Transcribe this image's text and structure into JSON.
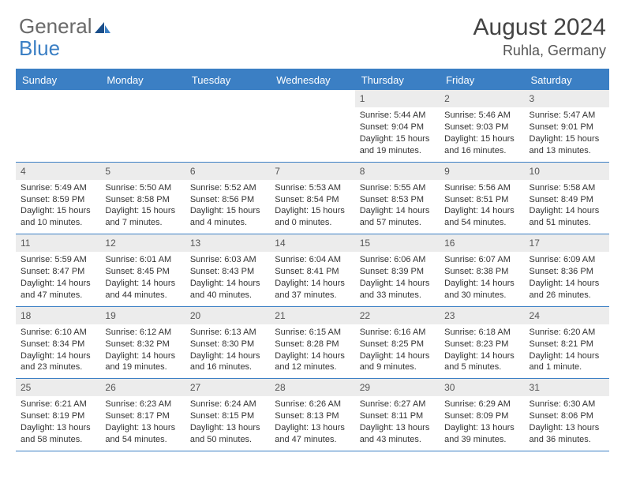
{
  "brand": {
    "part1": "General",
    "part2": "Blue"
  },
  "title": "August 2024",
  "location": "Ruhla, Germany",
  "colors": {
    "accent": "#3b7fc4",
    "header_text": "#ffffff",
    "daynum_bg": "#ececec",
    "body_text": "#333333",
    "background": "#ffffff"
  },
  "fonts": {
    "base_family": "Arial",
    "title_size_pt": 22,
    "location_size_pt": 14,
    "dow_size_pt": 10,
    "body_size_pt": 8
  },
  "days_of_week": [
    "Sunday",
    "Monday",
    "Tuesday",
    "Wednesday",
    "Thursday",
    "Friday",
    "Saturday"
  ],
  "weeks": [
    [
      {
        "n": "",
        "sr": "",
        "ss": "",
        "dl": ""
      },
      {
        "n": "",
        "sr": "",
        "ss": "",
        "dl": ""
      },
      {
        "n": "",
        "sr": "",
        "ss": "",
        "dl": ""
      },
      {
        "n": "",
        "sr": "",
        "ss": "",
        "dl": ""
      },
      {
        "n": "1",
        "sr": "Sunrise: 5:44 AM",
        "ss": "Sunset: 9:04 PM",
        "dl": "Daylight: 15 hours and 19 minutes."
      },
      {
        "n": "2",
        "sr": "Sunrise: 5:46 AM",
        "ss": "Sunset: 9:03 PM",
        "dl": "Daylight: 15 hours and 16 minutes."
      },
      {
        "n": "3",
        "sr": "Sunrise: 5:47 AM",
        "ss": "Sunset: 9:01 PM",
        "dl": "Daylight: 15 hours and 13 minutes."
      }
    ],
    [
      {
        "n": "4",
        "sr": "Sunrise: 5:49 AM",
        "ss": "Sunset: 8:59 PM",
        "dl": "Daylight: 15 hours and 10 minutes."
      },
      {
        "n": "5",
        "sr": "Sunrise: 5:50 AM",
        "ss": "Sunset: 8:58 PM",
        "dl": "Daylight: 15 hours and 7 minutes."
      },
      {
        "n": "6",
        "sr": "Sunrise: 5:52 AM",
        "ss": "Sunset: 8:56 PM",
        "dl": "Daylight: 15 hours and 4 minutes."
      },
      {
        "n": "7",
        "sr": "Sunrise: 5:53 AM",
        "ss": "Sunset: 8:54 PM",
        "dl": "Daylight: 15 hours and 0 minutes."
      },
      {
        "n": "8",
        "sr": "Sunrise: 5:55 AM",
        "ss": "Sunset: 8:53 PM",
        "dl": "Daylight: 14 hours and 57 minutes."
      },
      {
        "n": "9",
        "sr": "Sunrise: 5:56 AM",
        "ss": "Sunset: 8:51 PM",
        "dl": "Daylight: 14 hours and 54 minutes."
      },
      {
        "n": "10",
        "sr": "Sunrise: 5:58 AM",
        "ss": "Sunset: 8:49 PM",
        "dl": "Daylight: 14 hours and 51 minutes."
      }
    ],
    [
      {
        "n": "11",
        "sr": "Sunrise: 5:59 AM",
        "ss": "Sunset: 8:47 PM",
        "dl": "Daylight: 14 hours and 47 minutes."
      },
      {
        "n": "12",
        "sr": "Sunrise: 6:01 AM",
        "ss": "Sunset: 8:45 PM",
        "dl": "Daylight: 14 hours and 44 minutes."
      },
      {
        "n": "13",
        "sr": "Sunrise: 6:03 AM",
        "ss": "Sunset: 8:43 PM",
        "dl": "Daylight: 14 hours and 40 minutes."
      },
      {
        "n": "14",
        "sr": "Sunrise: 6:04 AM",
        "ss": "Sunset: 8:41 PM",
        "dl": "Daylight: 14 hours and 37 minutes."
      },
      {
        "n": "15",
        "sr": "Sunrise: 6:06 AM",
        "ss": "Sunset: 8:39 PM",
        "dl": "Daylight: 14 hours and 33 minutes."
      },
      {
        "n": "16",
        "sr": "Sunrise: 6:07 AM",
        "ss": "Sunset: 8:38 PM",
        "dl": "Daylight: 14 hours and 30 minutes."
      },
      {
        "n": "17",
        "sr": "Sunrise: 6:09 AM",
        "ss": "Sunset: 8:36 PM",
        "dl": "Daylight: 14 hours and 26 minutes."
      }
    ],
    [
      {
        "n": "18",
        "sr": "Sunrise: 6:10 AM",
        "ss": "Sunset: 8:34 PM",
        "dl": "Daylight: 14 hours and 23 minutes."
      },
      {
        "n": "19",
        "sr": "Sunrise: 6:12 AM",
        "ss": "Sunset: 8:32 PM",
        "dl": "Daylight: 14 hours and 19 minutes."
      },
      {
        "n": "20",
        "sr": "Sunrise: 6:13 AM",
        "ss": "Sunset: 8:30 PM",
        "dl": "Daylight: 14 hours and 16 minutes."
      },
      {
        "n": "21",
        "sr": "Sunrise: 6:15 AM",
        "ss": "Sunset: 8:28 PM",
        "dl": "Daylight: 14 hours and 12 minutes."
      },
      {
        "n": "22",
        "sr": "Sunrise: 6:16 AM",
        "ss": "Sunset: 8:25 PM",
        "dl": "Daylight: 14 hours and 9 minutes."
      },
      {
        "n": "23",
        "sr": "Sunrise: 6:18 AM",
        "ss": "Sunset: 8:23 PM",
        "dl": "Daylight: 14 hours and 5 minutes."
      },
      {
        "n": "24",
        "sr": "Sunrise: 6:20 AM",
        "ss": "Sunset: 8:21 PM",
        "dl": "Daylight: 14 hours and 1 minute."
      }
    ],
    [
      {
        "n": "25",
        "sr": "Sunrise: 6:21 AM",
        "ss": "Sunset: 8:19 PM",
        "dl": "Daylight: 13 hours and 58 minutes."
      },
      {
        "n": "26",
        "sr": "Sunrise: 6:23 AM",
        "ss": "Sunset: 8:17 PM",
        "dl": "Daylight: 13 hours and 54 minutes."
      },
      {
        "n": "27",
        "sr": "Sunrise: 6:24 AM",
        "ss": "Sunset: 8:15 PM",
        "dl": "Daylight: 13 hours and 50 minutes."
      },
      {
        "n": "28",
        "sr": "Sunrise: 6:26 AM",
        "ss": "Sunset: 8:13 PM",
        "dl": "Daylight: 13 hours and 47 minutes."
      },
      {
        "n": "29",
        "sr": "Sunrise: 6:27 AM",
        "ss": "Sunset: 8:11 PM",
        "dl": "Daylight: 13 hours and 43 minutes."
      },
      {
        "n": "30",
        "sr": "Sunrise: 6:29 AM",
        "ss": "Sunset: 8:09 PM",
        "dl": "Daylight: 13 hours and 39 minutes."
      },
      {
        "n": "31",
        "sr": "Sunrise: 6:30 AM",
        "ss": "Sunset: 8:06 PM",
        "dl": "Daylight: 13 hours and 36 minutes."
      }
    ]
  ]
}
